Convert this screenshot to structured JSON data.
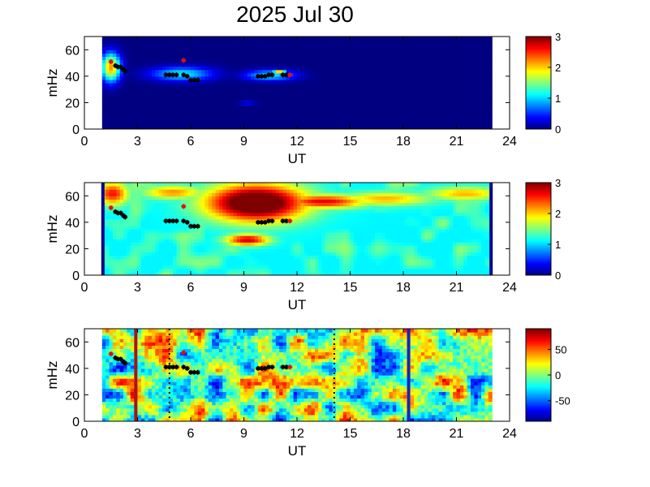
{
  "title": "2025 Jul 30",
  "chart_data": [
    {
      "type": "heatmap",
      "xlabel": "UT",
      "ylabel": "mHz",
      "xlim": [
        0,
        24
      ],
      "ylim": [
        0,
        70
      ],
      "xticks": [
        "0",
        "3",
        "6",
        "9",
        "12",
        "15",
        "18",
        "21",
        "24"
      ],
      "yticks": [
        "0",
        "20",
        "40",
        "60"
      ],
      "colorbar": {
        "min": 0,
        "max": 3,
        "ticks": [
          "0",
          "1",
          "2",
          "3"
        ]
      },
      "data_extent": [
        1,
        23
      ],
      "background_level": 0,
      "blobs": [
        {
          "x": 1.5,
          "y": 47,
          "w": 0.6,
          "h": 24,
          "v": 2.2
        },
        {
          "x": 5.5,
          "y": 42,
          "w": 2.0,
          "h": 12,
          "v": 1.1
        },
        {
          "x": 10.5,
          "y": 41,
          "w": 1.6,
          "h": 9,
          "v": 1.1
        },
        {
          "x": 11.0,
          "y": 43,
          "w": 0.4,
          "h": 4,
          "v": 2.6
        },
        {
          "x": 9.2,
          "y": 20,
          "w": 0.5,
          "h": 3,
          "v": 0.6
        }
      ]
    },
    {
      "type": "heatmap",
      "xlabel": "UT",
      "ylabel": "mHz",
      "xlim": [
        0,
        24
      ],
      "ylim": [
        0,
        70
      ],
      "xticks": [
        "0",
        "3",
        "6",
        "9",
        "12",
        "15",
        "18",
        "21",
        "24"
      ],
      "yticks": [
        "0",
        "20",
        "40",
        "60"
      ],
      "colorbar": {
        "min": 0,
        "max": 3,
        "ticks": [
          "0",
          "1",
          "2",
          "3"
        ]
      },
      "data_extent": [
        1,
        23
      ],
      "background_level": 1.1,
      "blobs": [
        {
          "x": 9.7,
          "y": 55,
          "w": 3.2,
          "h": 32,
          "v": 3.6
        },
        {
          "x": 9.2,
          "y": 27,
          "w": 1.4,
          "h": 10,
          "v": 2.8
        },
        {
          "x": 1.6,
          "y": 62,
          "w": 1.0,
          "h": 20,
          "v": 2.6
        },
        {
          "x": 5.0,
          "y": 63,
          "w": 2.0,
          "h": 12,
          "v": 2.2
        },
        {
          "x": 13.5,
          "y": 56,
          "w": 2.8,
          "h": 12,
          "v": 2.7
        },
        {
          "x": 17.0,
          "y": 58,
          "w": 3.0,
          "h": 12,
          "v": 2.1
        },
        {
          "x": 21.5,
          "y": 62,
          "w": 2.5,
          "h": 12,
          "v": 2.1
        },
        {
          "x": 5.8,
          "y": 25,
          "w": 2.2,
          "h": 12,
          "v": 0.5
        },
        {
          "x": 18.5,
          "y": 22,
          "w": 4.0,
          "h": 14,
          "v": 0.7
        },
        {
          "x": 15.5,
          "y": 10,
          "w": 4.0,
          "h": 8,
          "v": 0.8
        },
        {
          "x": 3.5,
          "y": 5,
          "w": 3.0,
          "h": 6,
          "v": 0.7
        }
      ]
    },
    {
      "type": "heatmap",
      "xlabel": "UT",
      "ylabel": "mHz",
      "xlim": [
        0,
        24
      ],
      "ylim": [
        0,
        70
      ],
      "xticks": [
        "0",
        "3",
        "6",
        "9",
        "12",
        "15",
        "18",
        "21",
        "24"
      ],
      "yticks": [
        "0",
        "20",
        "40",
        "60"
      ],
      "colorbar": {
        "min": -90,
        "max": 90,
        "ticks": [
          "50",
          "0",
          "-50"
        ]
      },
      "data_extent": [
        1,
        23
      ],
      "background_level": 0,
      "noise": 65,
      "vertical_lines": [
        {
          "x": 2.9,
          "color": "#b01010",
          "style": "solid"
        },
        {
          "x": 4.8,
          "color": "#000000",
          "style": "dotted"
        },
        {
          "x": 14.1,
          "color": "#000000",
          "style": "dotted"
        },
        {
          "x": 18.3,
          "color": "#2020c0",
          "style": "solid"
        }
      ]
    }
  ],
  "markers": {
    "black": [
      [
        1.75,
        48
      ],
      [
        1.9,
        47
      ],
      [
        2.05,
        47
      ],
      [
        2.2,
        45
      ],
      [
        2.3,
        44
      ],
      [
        4.6,
        41
      ],
      [
        4.8,
        41
      ],
      [
        5.0,
        41
      ],
      [
        5.2,
        41
      ],
      [
        5.6,
        41
      ],
      [
        5.8,
        40
      ],
      [
        6.0,
        37
      ],
      [
        6.2,
        37
      ],
      [
        6.4,
        37
      ],
      [
        9.8,
        40
      ],
      [
        10.0,
        40
      ],
      [
        10.2,
        40
      ],
      [
        10.4,
        41
      ],
      [
        10.6,
        41
      ],
      [
        11.2,
        41
      ],
      [
        11.4,
        41
      ]
    ],
    "red": [
      [
        1.5,
        51
      ],
      [
        5.6,
        52
      ],
      [
        11.6,
        41
      ]
    ]
  },
  "colors": {
    "axis": "#000000",
    "frame": "#000000"
  }
}
